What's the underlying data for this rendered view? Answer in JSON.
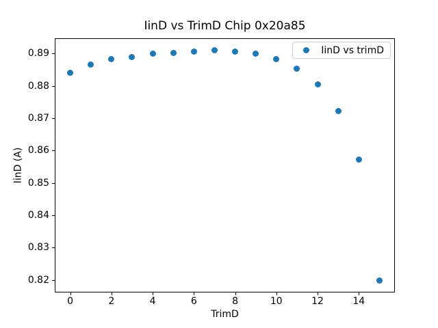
{
  "chart_data": {
    "type": "scatter",
    "title": "IinD vs TrimD Chip 0x20a85",
    "xlabel": "TrimD",
    "ylabel": "IinD (A)",
    "series": [
      {
        "name": "IinD vs trimD",
        "x": [
          0,
          1,
          2,
          3,
          4,
          5,
          6,
          7,
          8,
          9,
          10,
          11,
          12,
          13,
          14,
          15
        ],
        "y": [
          0.884,
          0.8866,
          0.8882,
          0.8889,
          0.8899,
          0.8901,
          0.8906,
          0.8911,
          0.8906,
          0.89,
          0.8882,
          0.8854,
          0.8805,
          0.8722,
          0.8572,
          0.8197
        ],
        "marker": "circle",
        "color": "#1f77b4"
      }
    ],
    "xlim": [
      -0.75,
      15.75
    ],
    "ylim": [
      0.8161,
      0.8947
    ],
    "xticks": [
      0,
      2,
      4,
      6,
      8,
      10,
      12,
      14
    ],
    "yticks": [
      0.82,
      0.83,
      0.84,
      0.85,
      0.86,
      0.87,
      0.88,
      0.89
    ],
    "grid": false,
    "background": "#ffffff",
    "spine_color": "#000000",
    "legend": {
      "visible": true,
      "position": "upper-right",
      "entries": [
        "IinD vs trimD"
      ]
    }
  }
}
